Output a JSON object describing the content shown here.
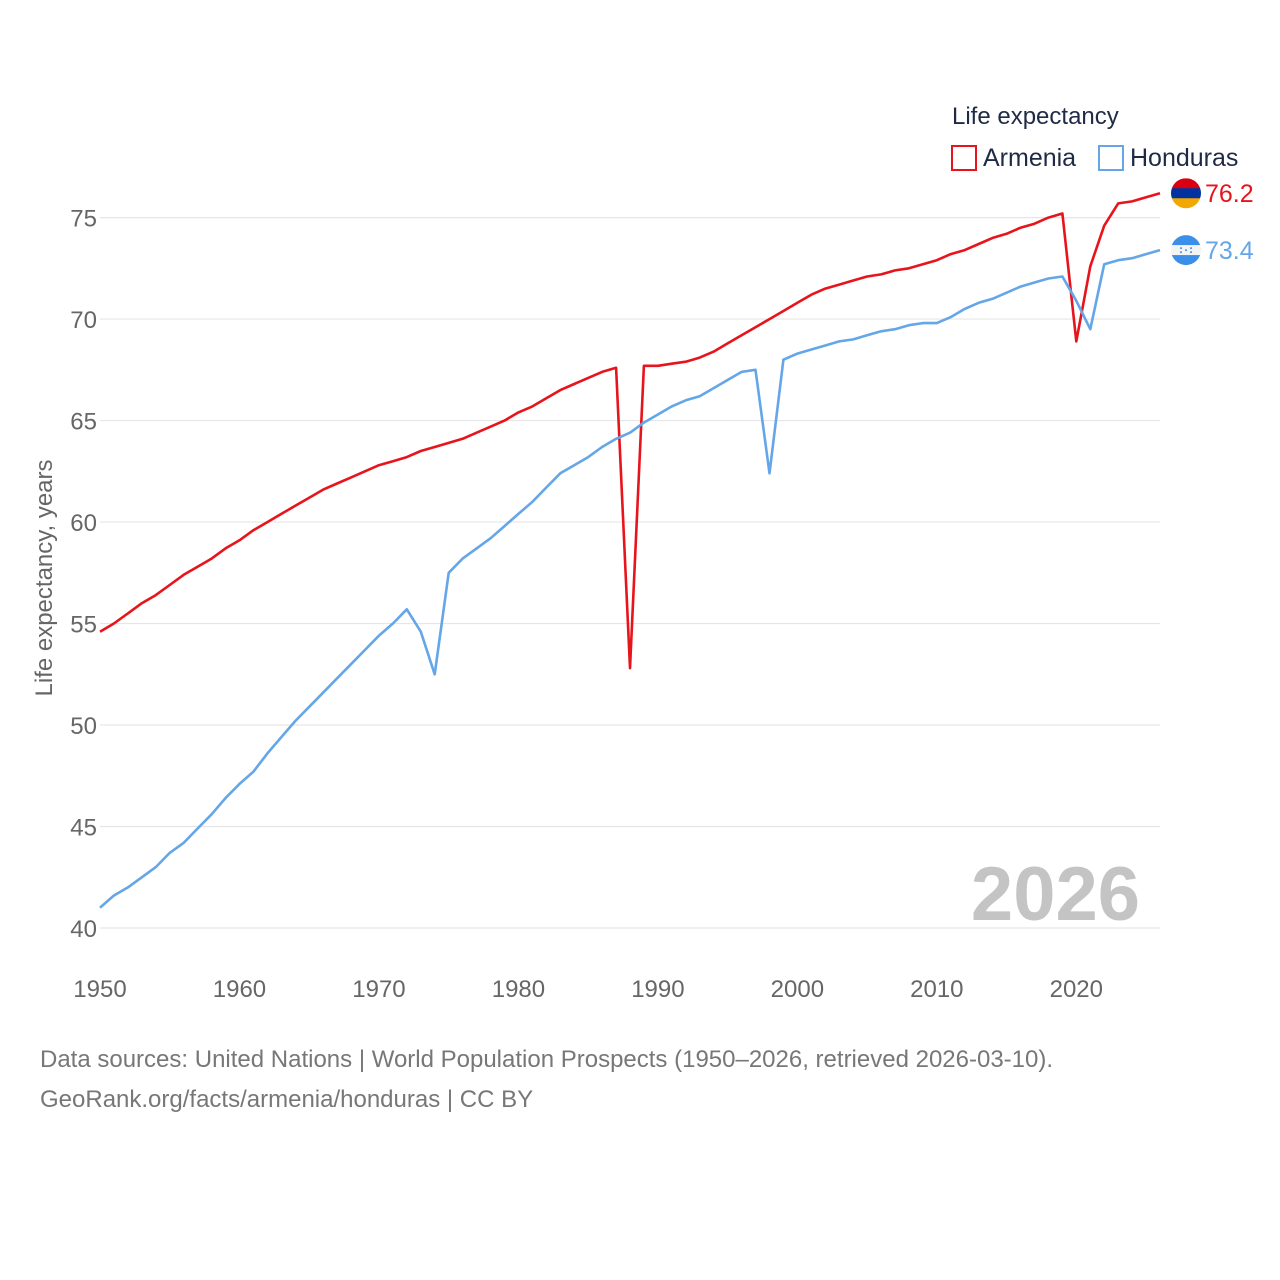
{
  "chart_data": {
    "type": "line",
    "title": "Life expectancy",
    "xlabel": "",
    "ylabel": "Life expectancy, years",
    "xlim": [
      1950,
      2026
    ],
    "ylim": [
      40,
      77
    ],
    "x_ticks": [
      1950,
      1960,
      1970,
      1980,
      1990,
      2000,
      2010,
      2020
    ],
    "y_ticks": [
      40,
      45,
      50,
      55,
      60,
      65,
      70,
      75
    ],
    "grid": true,
    "legend_position": "top-right",
    "current_year": "2026",
    "series": [
      {
        "name": "Armenia",
        "color": "#e8141c",
        "end_label": "76.2",
        "flag_icon": "armenia-flag-icon",
        "x": [
          1950,
          1951,
          1952,
          1953,
          1954,
          1955,
          1956,
          1957,
          1958,
          1959,
          1960,
          1961,
          1962,
          1963,
          1964,
          1965,
          1966,
          1967,
          1968,
          1969,
          1970,
          1971,
          1972,
          1973,
          1974,
          1975,
          1976,
          1977,
          1978,
          1979,
          1980,
          1981,
          1982,
          1983,
          1984,
          1985,
          1986,
          1987,
          1988,
          1989,
          1990,
          1991,
          1992,
          1993,
          1994,
          1995,
          1996,
          1997,
          1998,
          1999,
          2000,
          2001,
          2002,
          2003,
          2004,
          2005,
          2006,
          2007,
          2008,
          2009,
          2010,
          2011,
          2012,
          2013,
          2014,
          2015,
          2016,
          2017,
          2018,
          2019,
          2020,
          2021,
          2022,
          2023,
          2024,
          2025,
          2026
        ],
        "values": [
          54.6,
          55.0,
          55.5,
          56.0,
          56.4,
          56.9,
          57.4,
          57.8,
          58.2,
          58.7,
          59.1,
          59.6,
          60.0,
          60.4,
          60.8,
          61.2,
          61.6,
          61.9,
          62.2,
          62.5,
          62.8,
          63.0,
          63.2,
          63.5,
          63.7,
          63.9,
          64.1,
          64.4,
          64.7,
          65.0,
          65.4,
          65.7,
          66.1,
          66.5,
          66.8,
          67.1,
          67.4,
          67.6,
          52.8,
          67.7,
          67.7,
          67.8,
          67.9,
          68.1,
          68.4,
          68.8,
          69.2,
          69.6,
          70.0,
          70.4,
          70.8,
          71.2,
          71.5,
          71.7,
          71.9,
          72.1,
          72.2,
          72.4,
          72.5,
          72.7,
          72.9,
          73.2,
          73.4,
          73.7,
          74.0,
          74.2,
          74.5,
          74.7,
          75.0,
          75.2,
          68.9,
          72.6,
          74.6,
          75.7,
          75.8,
          76.0,
          76.2
        ]
      },
      {
        "name": "Honduras",
        "color": "#64a6e8",
        "end_label": "73.4",
        "flag_icon": "honduras-flag-icon",
        "x": [
          1950,
          1951,
          1952,
          1953,
          1954,
          1955,
          1956,
          1957,
          1958,
          1959,
          1960,
          1961,
          1962,
          1963,
          1964,
          1965,
          1966,
          1967,
          1968,
          1969,
          1970,
          1971,
          1972,
          1973,
          1974,
          1975,
          1976,
          1977,
          1978,
          1979,
          1980,
          1981,
          1982,
          1983,
          1984,
          1985,
          1986,
          1987,
          1988,
          1989,
          1990,
          1991,
          1992,
          1993,
          1994,
          1995,
          1996,
          1997,
          1998,
          1999,
          2000,
          2001,
          2002,
          2003,
          2004,
          2005,
          2006,
          2007,
          2008,
          2009,
          2010,
          2011,
          2012,
          2013,
          2014,
          2015,
          2016,
          2017,
          2018,
          2019,
          2020,
          2021,
          2022,
          2023,
          2024,
          2025,
          2026
        ],
        "values": [
          41.0,
          41.6,
          42.0,
          42.5,
          43.0,
          43.7,
          44.2,
          44.9,
          45.6,
          46.4,
          47.1,
          47.7,
          48.6,
          49.4,
          50.2,
          50.9,
          51.6,
          52.3,
          53.0,
          53.7,
          54.4,
          55.0,
          55.7,
          54.6,
          52.5,
          57.5,
          58.2,
          58.7,
          59.2,
          59.8,
          60.4,
          61.0,
          61.7,
          62.4,
          62.8,
          63.2,
          63.7,
          64.1,
          64.4,
          64.9,
          65.3,
          65.7,
          66.0,
          66.2,
          66.6,
          67.0,
          67.4,
          67.5,
          62.4,
          68.0,
          68.3,
          68.5,
          68.7,
          68.9,
          69.0,
          69.2,
          69.4,
          69.5,
          69.7,
          69.8,
          69.8,
          70.1,
          70.5,
          70.8,
          71.0,
          71.3,
          71.6,
          71.8,
          72.0,
          72.1,
          70.9,
          69.5,
          72.7,
          72.9,
          73.0,
          73.2,
          73.4
        ]
      }
    ]
  },
  "footer": {
    "source_line": "Data sources: United Nations | World Population Prospects (1950–2026, retrieved 2026-03-10).",
    "url_line": "GeoRank.org/facts/armenia/honduras | CC BY"
  }
}
